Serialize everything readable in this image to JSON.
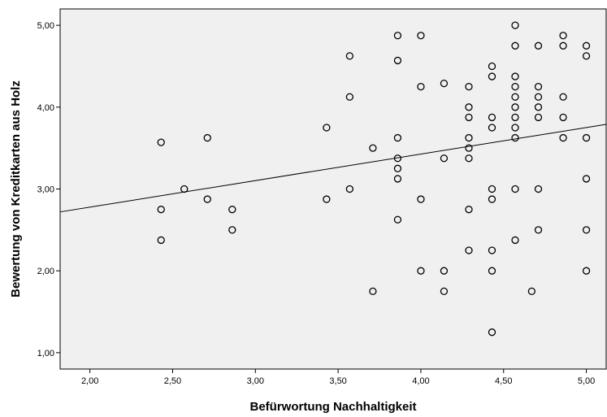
{
  "chart_data": {
    "type": "scatter",
    "xlabel": "Befürwortung Nachhaltigkeit",
    "ylabel": "Bewertung von Kreditkarten aus Holz",
    "xlim": [
      1.82,
      5.12
    ],
    "ylim": [
      0.8,
      5.2
    ],
    "xticks": [
      2.0,
      2.5,
      3.0,
      3.5,
      4.0,
      4.5,
      5.0
    ],
    "yticks": [
      1.0,
      2.0,
      3.0,
      4.0,
      5.0
    ],
    "xtick_labels": [
      "2,00",
      "2,50",
      "3,00",
      "3,50",
      "4,00",
      "4,50",
      "5,00"
    ],
    "ytick_labels": [
      "1,00",
      "2,00",
      "3,00",
      "4,00",
      "5,00"
    ],
    "grid": false,
    "plot_background": "#f0f0f0",
    "marker_color": "#000000",
    "fit_line": {
      "type": "linear",
      "x": [
        1.82,
        5.12
      ],
      "y": [
        2.72,
        3.79
      ]
    },
    "points": [
      [
        2.43,
        3.57
      ],
      [
        2.43,
        2.75
      ],
      [
        2.43,
        2.375
      ],
      [
        2.57,
        3.0
      ],
      [
        2.71,
        3.625
      ],
      [
        2.71,
        2.875
      ],
      [
        2.86,
        2.75
      ],
      [
        2.86,
        2.5
      ],
      [
        3.43,
        3.75
      ],
      [
        3.43,
        2.875
      ],
      [
        3.57,
        4.625
      ],
      [
        3.57,
        4.125
      ],
      [
        3.57,
        3.0
      ],
      [
        3.71,
        3.5
      ],
      [
        3.71,
        1.75
      ],
      [
        3.86,
        4.875
      ],
      [
        3.86,
        4.57
      ],
      [
        3.86,
        3.625
      ],
      [
        3.86,
        3.375
      ],
      [
        3.86,
        3.25
      ],
      [
        3.86,
        3.125
      ],
      [
        3.86,
        2.625
      ],
      [
        4.0,
        4.875
      ],
      [
        4.0,
        4.25
      ],
      [
        4.0,
        2.875
      ],
      [
        4.0,
        2.0
      ],
      [
        4.14,
        4.29
      ],
      [
        4.14,
        3.375
      ],
      [
        4.14,
        2.0
      ],
      [
        4.14,
        1.75
      ],
      [
        4.29,
        4.25
      ],
      [
        4.29,
        4.0
      ],
      [
        4.29,
        3.875
      ],
      [
        4.29,
        3.625
      ],
      [
        4.29,
        3.5
      ],
      [
        4.29,
        3.375
      ],
      [
        4.29,
        2.75
      ],
      [
        4.29,
        2.25
      ],
      [
        4.43,
        4.5
      ],
      [
        4.43,
        4.375
      ],
      [
        4.43,
        3.875
      ],
      [
        4.43,
        3.75
      ],
      [
        4.43,
        3.0
      ],
      [
        4.43,
        2.875
      ],
      [
        4.43,
        2.25
      ],
      [
        4.43,
        2.0
      ],
      [
        4.43,
        1.25
      ],
      [
        4.57,
        5.0
      ],
      [
        4.57,
        4.75
      ],
      [
        4.57,
        4.375
      ],
      [
        4.57,
        4.25
      ],
      [
        4.57,
        4.125
      ],
      [
        4.57,
        4.0
      ],
      [
        4.57,
        3.875
      ],
      [
        4.57,
        3.75
      ],
      [
        4.57,
        3.625
      ],
      [
        4.57,
        3.0
      ],
      [
        4.57,
        2.375
      ],
      [
        4.67,
        1.75
      ],
      [
        4.71,
        4.75
      ],
      [
        4.71,
        4.25
      ],
      [
        4.71,
        4.125
      ],
      [
        4.71,
        4.0
      ],
      [
        4.71,
        3.875
      ],
      [
        4.71,
        3.0
      ],
      [
        4.71,
        2.5
      ],
      [
        4.86,
        4.875
      ],
      [
        4.86,
        4.75
      ],
      [
        4.86,
        4.125
      ],
      [
        4.86,
        3.875
      ],
      [
        4.86,
        3.625
      ],
      [
        5.0,
        4.75
      ],
      [
        5.0,
        4.625
      ],
      [
        5.0,
        3.625
      ],
      [
        5.0,
        3.125
      ],
      [
        5.0,
        2.5
      ],
      [
        5.0,
        2.0
      ]
    ]
  }
}
